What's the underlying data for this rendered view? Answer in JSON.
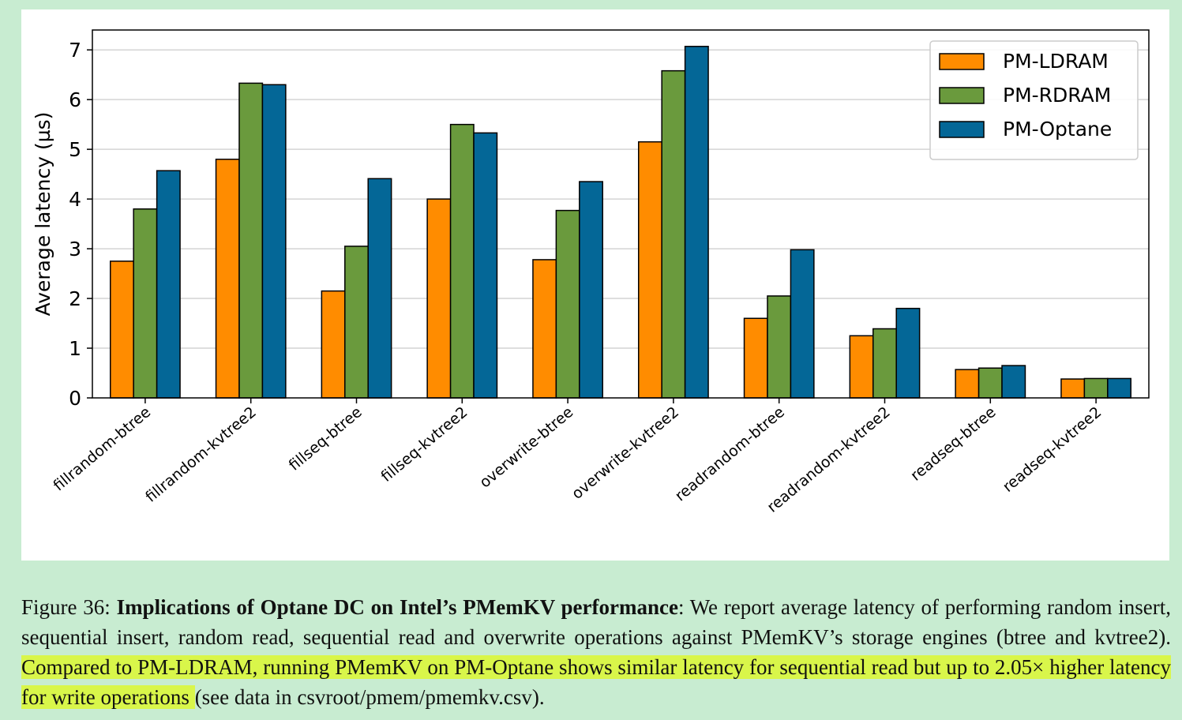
{
  "chart_data": {
    "type": "bar",
    "ylabel": "Average latency (µs)",
    "xlabel": "",
    "ylim": [
      0,
      7.4
    ],
    "yticks": [
      0,
      1,
      2,
      3,
      4,
      5,
      6,
      7
    ],
    "grid": "horizontal",
    "legend_position": "top-right",
    "categories": [
      "fillrandom-btree",
      "fillrandom-kvtree2",
      "fillseq-btree",
      "fillseq-kvtree2",
      "overwrite-btree",
      "overwrite-kvtree2",
      "readrandom-btree",
      "readrandom-kvtree2",
      "readseq-btree",
      "readseq-kvtree2"
    ],
    "series": [
      {
        "name": "PM-LDRAM",
        "color": "#ff8c00",
        "values": [
          2.75,
          4.8,
          2.15,
          4.0,
          2.78,
          5.15,
          1.6,
          1.25,
          0.57,
          0.38
        ]
      },
      {
        "name": "PM-RDRAM",
        "color": "#6a9a3d",
        "values": [
          3.8,
          6.33,
          3.05,
          5.5,
          3.77,
          6.58,
          2.05,
          1.39,
          0.6,
          0.39
        ]
      },
      {
        "name": "PM-Optane",
        "color": "#046797",
        "values": [
          4.57,
          6.3,
          4.41,
          5.33,
          4.35,
          7.07,
          2.98,
          1.8,
          0.65,
          0.39
        ]
      }
    ]
  },
  "caption": {
    "figure_label": "Figure 36: ",
    "bold_title": "Implications of Optane DC on Intel’s PMemKV performance",
    "body_plain": ": We report average latency of performing random insert, sequential insert, random read, sequential read and overwrite operations against PMemKV’s storage engines (btree and kvtree2).",
    "body_highlight": " Compared to PM-LDRAM, running PMemKV on PM-Optane shows similar latency for sequential read but up to 2.05× higher latency for write operations ",
    "body_tail": "(see data in csvroot/pmem/pmemkv.csv)."
  }
}
